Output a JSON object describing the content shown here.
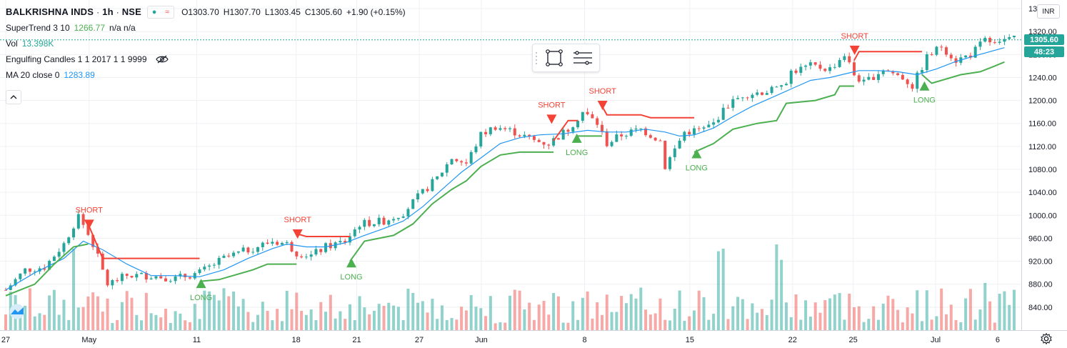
{
  "header": {
    "symbol": "BALKRISHNA INDS",
    "separator": "·",
    "interval": "1h",
    "exchange": "NSE",
    "open": "O1303.70",
    "high": "H1307.70",
    "low": "L1303.45",
    "close": "C1305.60",
    "change": "+1.90 (+0.15%)"
  },
  "indicators": [
    {
      "label": "SuperTrend 3 10",
      "value": "1266.77",
      "extra": "n/a  n/a"
    },
    {
      "label": "Vol",
      "value": "13.398K"
    },
    {
      "label": "Engulfing Candles 1 1 2017 1 1 9999"
    },
    {
      "label": "MA 20 close 0",
      "value": "1283.89"
    }
  ],
  "price_axis": {
    "currency": "INR",
    "last_price": "1305.60",
    "countdown": "48:23"
  },
  "icons": {
    "collapse": "chevron-up-icon",
    "hide": "eye-crossed-icon",
    "toolbar": [
      "drag-handle-icon",
      "rectangle-draw-icon",
      "settings-lines-icon"
    ],
    "logo": "tradingview-logo-icon",
    "settings": "gear-icon"
  },
  "colors": {
    "up": "#26a69a",
    "down": "#ef5350",
    "supertrend_up": "#4caf50",
    "supertrend_down": "#f44336",
    "ma": "#2196f3",
    "last_price": "#26a69a",
    "grid": "#eef0f3"
  },
  "chart_data": {
    "type": "candlestick",
    "ylim": [
      800,
      1375
    ],
    "y_ticks": [
      840,
      880,
      920,
      960,
      1000,
      1040,
      1080,
      1120,
      1160,
      1200,
      1240,
      1280,
      1320,
      1360
    ],
    "x_ticks": [
      {
        "label": "27",
        "x": 0
      },
      {
        "label": "May",
        "x": 17.2
      },
      {
        "label": "11",
        "x": 39.4
      },
      {
        "label": "18",
        "x": 59.9
      },
      {
        "label": "21",
        "x": 72.4
      },
      {
        "label": "27",
        "x": 85.3
      },
      {
        "label": "Jun",
        "x": 98.1
      },
      {
        "label": "8",
        "x": 119.4
      },
      {
        "label": "15",
        "x": 141.1
      },
      {
        "label": "22",
        "x": 162.3
      },
      {
        "label": "25",
        "x": 174.8
      },
      {
        "label": "Jul",
        "x": 191.8
      },
      {
        "label": "6",
        "x": 204.6
      }
    ],
    "x_range": [
      0,
      208
    ],
    "price_path": [
      [
        0,
        870
      ],
      [
        4,
        905
      ],
      [
        8,
        910
      ],
      [
        12,
        950
      ],
      [
        15,
        1000
      ],
      [
        18,
        950
      ],
      [
        21,
        880
      ],
      [
        25,
        895
      ],
      [
        30,
        895
      ],
      [
        35,
        890
      ],
      [
        40,
        900
      ],
      [
        45,
        925
      ],
      [
        50,
        940
      ],
      [
        55,
        955
      ],
      [
        58,
        950
      ],
      [
        60,
        935
      ],
      [
        63,
        930
      ],
      [
        66,
        945
      ],
      [
        70,
        955
      ],
      [
        73,
        985
      ],
      [
        78,
        990
      ],
      [
        82,
        1005
      ],
      [
        86,
        1040
      ],
      [
        89,
        1065
      ],
      [
        92,
        1100
      ],
      [
        95,
        1090
      ],
      [
        98,
        1140
      ],
      [
        101,
        1155
      ],
      [
        105,
        1145
      ],
      [
        109,
        1130
      ],
      [
        112,
        1125
      ],
      [
        116,
        1150
      ],
      [
        119,
        1180
      ],
      [
        122,
        1160
      ],
      [
        124,
        1125
      ],
      [
        127,
        1140
      ],
      [
        131,
        1150
      ],
      [
        135,
        1130
      ],
      [
        136,
        1085
      ],
      [
        138,
        1115
      ],
      [
        140,
        1145
      ],
      [
        144,
        1150
      ],
      [
        146,
        1160
      ],
      [
        148,
        1185
      ],
      [
        152,
        1210
      ],
      [
        156,
        1215
      ],
      [
        160,
        1220
      ],
      [
        162,
        1250
      ],
      [
        166,
        1260
      ],
      [
        170,
        1255
      ],
      [
        173,
        1280
      ],
      [
        175,
        1245
      ],
      [
        177,
        1230
      ],
      [
        181,
        1255
      ],
      [
        185,
        1240
      ],
      [
        187,
        1225
      ],
      [
        190,
        1275
      ],
      [
        193,
        1295
      ],
      [
        196,
        1270
      ],
      [
        199,
        1280
      ],
      [
        202,
        1305
      ],
      [
        206,
        1306
      ]
    ],
    "volume_max": 1,
    "volume_highlights": [
      {
        "x": 14,
        "v": 0.95
      },
      {
        "x": 147,
        "v": 0.92
      },
      {
        "x": 148,
        "v": 0.95
      },
      {
        "x": 159,
        "v": 1.0
      },
      {
        "x": 160,
        "v": 0.82
      },
      {
        "x": 202,
        "v": 0.55
      }
    ],
    "supertrend": [
      {
        "dir": "up",
        "points": [
          [
            0,
            860
          ],
          [
            6,
            880
          ],
          [
            10,
            915
          ],
          [
            14,
            945
          ],
          [
            17,
            950
          ]
        ]
      },
      {
        "dir": "down",
        "points": [
          [
            17,
            985
          ],
          [
            20,
            925
          ],
          [
            40,
            925
          ]
        ]
      },
      {
        "dir": "up",
        "points": [
          [
            40,
            885
          ],
          [
            44,
            888
          ],
          [
            51,
            905
          ],
          [
            54,
            915
          ],
          [
            60,
            915
          ]
        ]
      },
      {
        "dir": "down",
        "points": [
          [
            60,
            968
          ],
          [
            62,
            963
          ],
          [
            71,
            963
          ]
        ]
      },
      {
        "dir": "up",
        "points": [
          [
            71,
            920
          ],
          [
            74,
            955
          ],
          [
            80,
            965
          ],
          [
            84,
            985
          ],
          [
            88,
            1020
          ],
          [
            92,
            1045
          ],
          [
            95,
            1060
          ],
          [
            98,
            1085
          ],
          [
            102,
            1105
          ],
          [
            106,
            1110
          ],
          [
            113,
            1110
          ]
        ]
      },
      {
        "dir": "down",
        "points": [
          [
            113,
            1130
          ],
          [
            116,
            1165
          ],
          [
            118,
            1165
          ]
        ]
      },
      {
        "dir": "up",
        "points": [
          [
            118,
            1138
          ],
          [
            123,
            1138
          ]
        ]
      },
      {
        "dir": "down",
        "points": [
          [
            123,
            1190
          ],
          [
            124,
            1175
          ],
          [
            131,
            1175
          ],
          [
            133,
            1170
          ],
          [
            142,
            1170
          ]
        ]
      },
      {
        "dir": "up",
        "points": [
          [
            142,
            1110
          ],
          [
            146,
            1125
          ],
          [
            150,
            1150
          ],
          [
            155,
            1160
          ],
          [
            159,
            1165
          ],
          [
            161,
            1195
          ],
          [
            167,
            1200
          ],
          [
            171,
            1210
          ],
          [
            172,
            1225
          ],
          [
            175,
            1225
          ]
        ]
      },
      {
        "dir": "down",
        "points": [
          [
            175,
            1270
          ],
          [
            176,
            1285
          ],
          [
            189,
            1285
          ]
        ]
      },
      {
        "dir": "up",
        "points": [
          [
            189,
            1245
          ],
          [
            191,
            1230
          ],
          [
            197,
            1245
          ],
          [
            201,
            1250
          ],
          [
            204,
            1260
          ],
          [
            206,
            1267
          ]
        ]
      }
    ],
    "ma_path": [
      [
        0,
        870
      ],
      [
        6,
        900
      ],
      [
        12,
        925
      ],
      [
        16,
        955
      ],
      [
        20,
        940
      ],
      [
        25,
        915
      ],
      [
        30,
        895
      ],
      [
        35,
        895
      ],
      [
        40,
        893
      ],
      [
        45,
        905
      ],
      [
        50,
        925
      ],
      [
        55,
        942
      ],
      [
        58,
        950
      ],
      [
        62,
        945
      ],
      [
        66,
        945
      ],
      [
        70,
        952
      ],
      [
        74,
        965
      ],
      [
        78,
        977
      ],
      [
        82,
        990
      ],
      [
        86,
        1015
      ],
      [
        90,
        1045
      ],
      [
        94,
        1075
      ],
      [
        98,
        1100
      ],
      [
        102,
        1125
      ],
      [
        106,
        1135
      ],
      [
        110,
        1140
      ],
      [
        115,
        1142
      ],
      [
        120,
        1148
      ],
      [
        124,
        1145
      ],
      [
        128,
        1145
      ],
      [
        132,
        1150
      ],
      [
        136,
        1145
      ],
      [
        139,
        1138
      ],
      [
        142,
        1140
      ],
      [
        146,
        1152
      ],
      [
        150,
        1172
      ],
      [
        154,
        1190
      ],
      [
        158,
        1205
      ],
      [
        162,
        1220
      ],
      [
        166,
        1235
      ],
      [
        170,
        1240
      ],
      [
        174,
        1248
      ],
      [
        176,
        1252
      ],
      [
        180,
        1252
      ],
      [
        184,
        1250
      ],
      [
        188,
        1245
      ],
      [
        192,
        1255
      ],
      [
        196,
        1268
      ],
      [
        200,
        1278
      ],
      [
        206,
        1292
      ]
    ],
    "signals": [
      {
        "type": "SHORT",
        "x": 17.2,
        "y": 985
      },
      {
        "type": "LONG",
        "x": 40.3,
        "y": 882
      },
      {
        "type": "SHORT",
        "x": 60.2,
        "y": 968
      },
      {
        "type": "LONG",
        "x": 71.3,
        "y": 918
      },
      {
        "type": "SHORT",
        "x": 112.6,
        "y": 1168
      },
      {
        "type": "LONG",
        "x": 117.8,
        "y": 1135
      },
      {
        "type": "SHORT",
        "x": 123.1,
        "y": 1192
      },
      {
        "type": "LONG",
        "x": 142.5,
        "y": 1108
      },
      {
        "type": "SHORT",
        "x": 175.1,
        "y": 1288
      },
      {
        "type": "LONG",
        "x": 189.5,
        "y": 1226
      }
    ]
  }
}
